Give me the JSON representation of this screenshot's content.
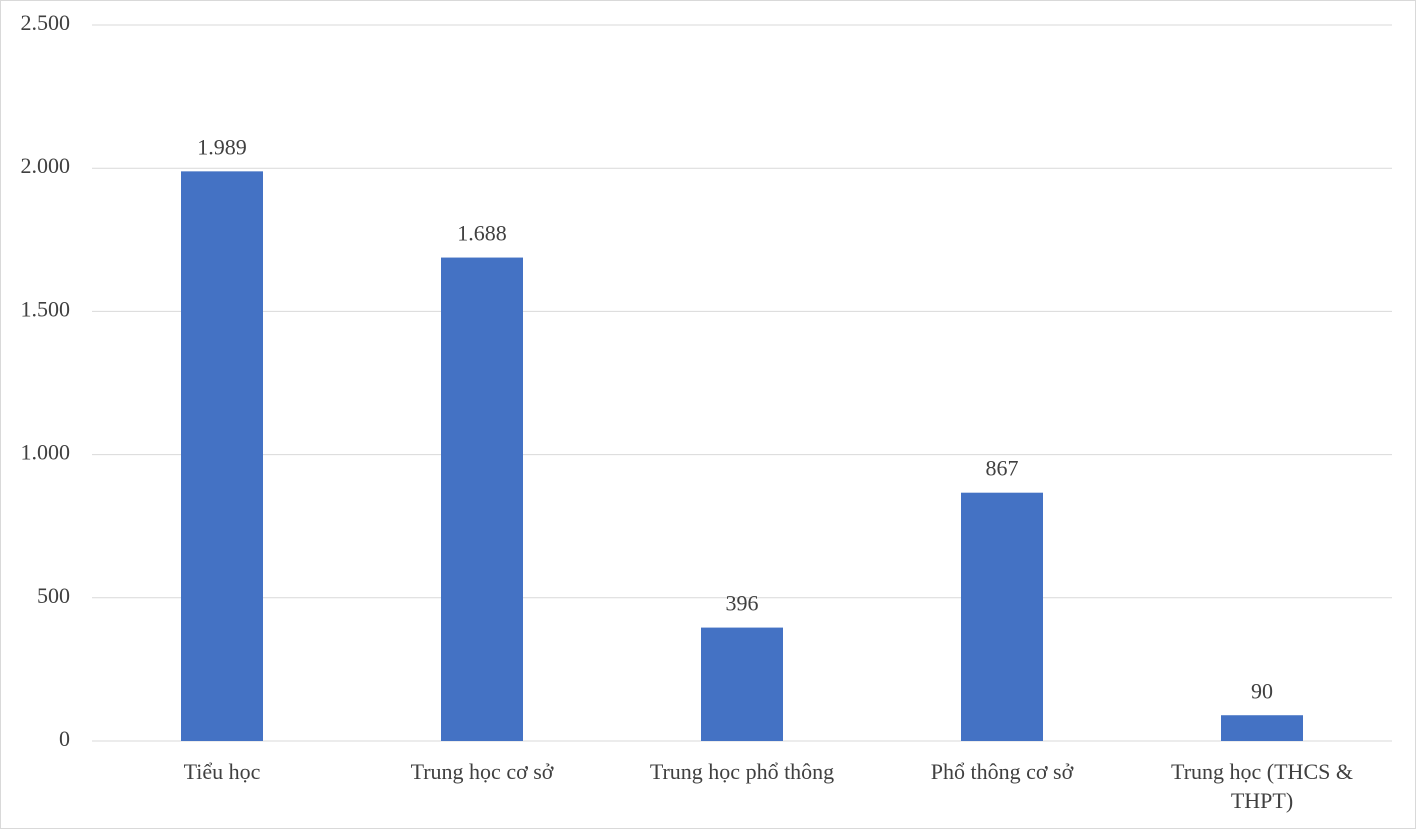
{
  "chart_data": {
    "type": "bar",
    "categories": [
      "Tiểu học",
      "Trung học cơ sở",
      "Trung học phổ thông",
      "Phổ thông cơ sở",
      "Trung học (THCS & THPT)"
    ],
    "values": [
      1989,
      1688,
      396,
      867,
      90
    ],
    "value_labels": [
      "1.989",
      "1.688",
      "396",
      "867",
      "90"
    ],
    "color": "#4472c4",
    "ylim": [
      0,
      2500
    ],
    "yticks": [
      0,
      500,
      {
        "value": 1000,
        "label": "1.000"
      },
      {
        "value": 1500,
        "label": "1.500"
      },
      {
        "value": 2000,
        "label": "2.000"
      },
      {
        "value": 2500,
        "label": "2.500"
      }
    ],
    "grid": true
  }
}
